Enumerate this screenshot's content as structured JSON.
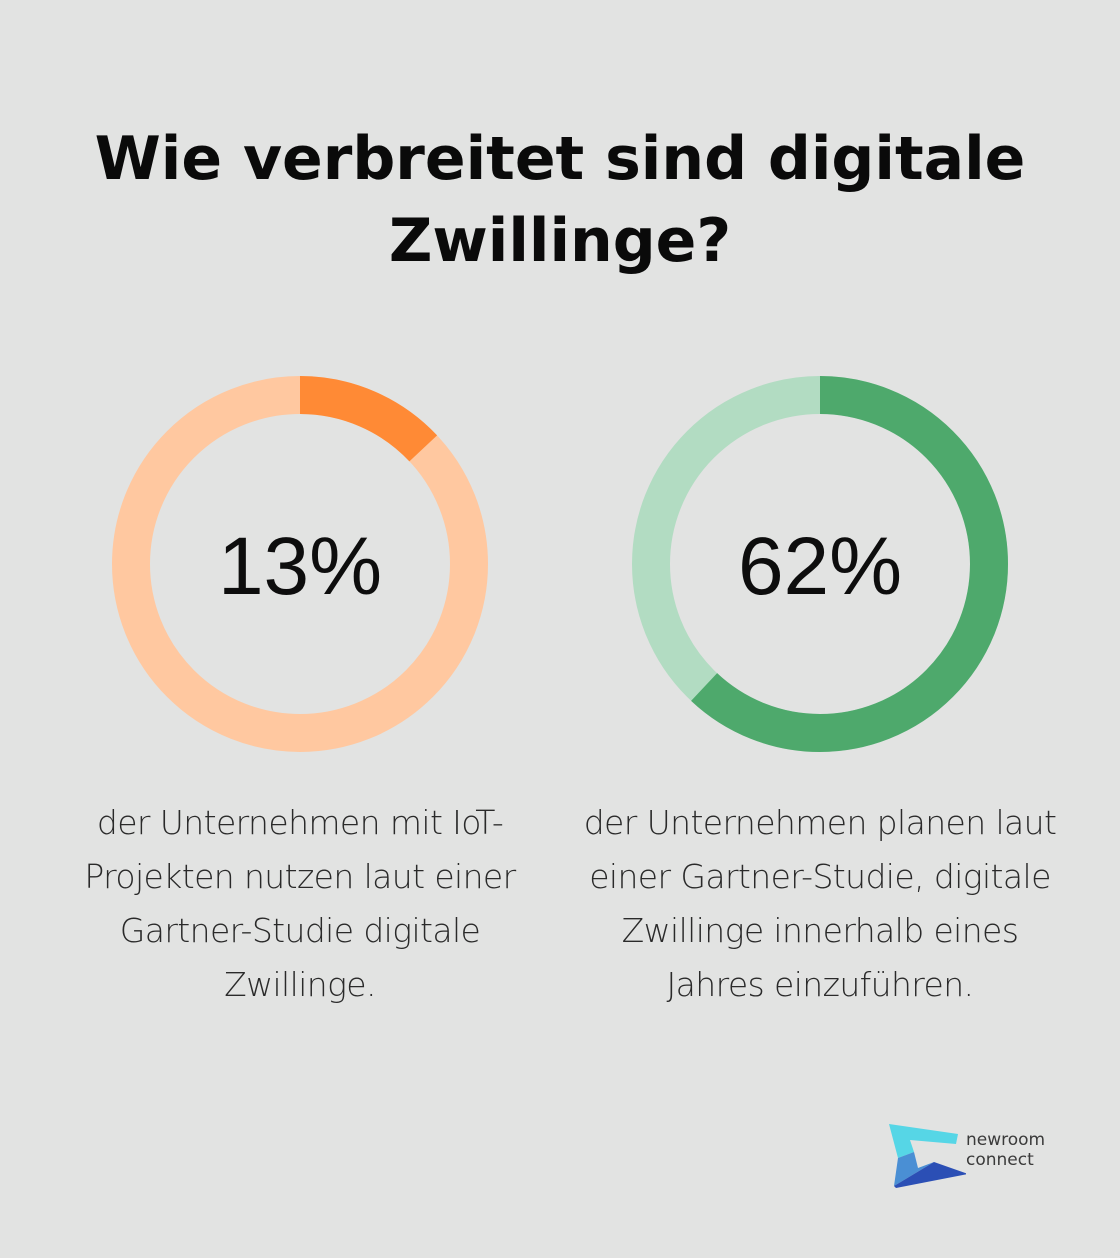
{
  "title": "Wie verbreitet sind digitale Zwillinge?",
  "chart_data": [
    {
      "type": "pie",
      "variant": "donut",
      "values": [
        13,
        87
      ],
      "center_label": "13%",
      "description": "der Unternehmen mit IoT-Projekten nutzen laut einer Gartner-Studie digitale Zwillinge.",
      "colors": {
        "value": "#ff8a35",
        "track": "#ffc8a0"
      }
    },
    {
      "type": "pie",
      "variant": "donut",
      "values": [
        62,
        38
      ],
      "center_label": "62%",
      "description": "der Unternehmen planen laut einer Gartner-Studie, digitale Zwillinge innerhalb eines Jahres einzuführen.",
      "colors": {
        "value": "#4ea96c",
        "track": "#b2dcc2"
      }
    }
  ],
  "logo": {
    "line1": "newroom",
    "line2": "connect",
    "colors": [
      "#56d6e6",
      "#4a8fd4",
      "#2b4fb5"
    ]
  }
}
